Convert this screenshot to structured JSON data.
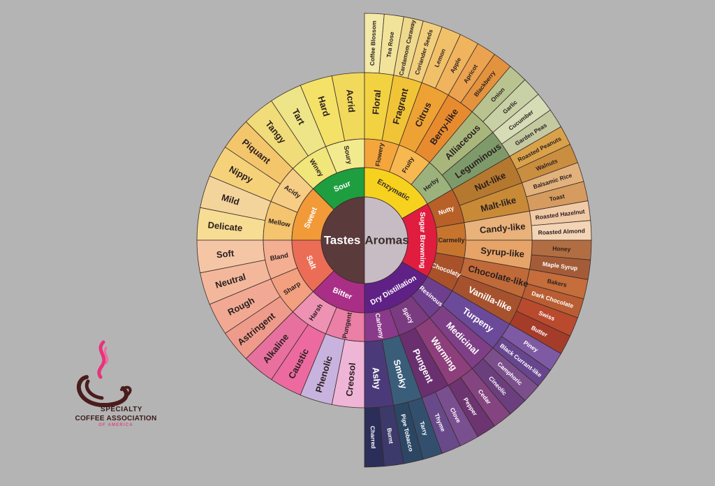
{
  "wheel": {
    "center_left": "Tastes",
    "center_right": "Aromas",
    "tastes": [
      {
        "name": "Sour",
        "color": "#1e9e3e",
        "subs": [
          {
            "name": "Soury",
            "items": [
              "Hard",
              "Acrid"
            ]
          },
          {
            "name": "Winey",
            "items": [
              "Tangy",
              "Tart"
            ]
          }
        ]
      },
      {
        "name": "Sweet",
        "color": "#f29a38",
        "subs": [
          {
            "name": "Acidy",
            "items": [
              "Nippy",
              "Piquant"
            ]
          },
          {
            "name": "Mellow",
            "items": [
              "Delicate",
              "Mild"
            ]
          }
        ]
      },
      {
        "name": "Salt",
        "color": "#ec6d55",
        "subs": [
          {
            "name": "Bland",
            "items": [
              "Neutral",
              "Soft"
            ]
          },
          {
            "name": "Sharp",
            "items": [
              "Astringent",
              "Rough"
            ]
          }
        ]
      },
      {
        "name": "Bitter",
        "color": "#a92e86",
        "subs": [
          {
            "name": "Harsh",
            "items": [
              "Caustic",
              "Alkaline"
            ]
          },
          {
            "name": "Pungent",
            "items": [
              "Creosol",
              "Phenolic"
            ]
          }
        ]
      }
    ],
    "aromas": [
      {
        "name": "Enzymatic",
        "color": "#f6d21e",
        "subs": [
          {
            "name": "Flowery",
            "items": [
              {
                "label": "Floral",
                "outer": [
                  "Coffee Blossom",
                  "Tea Rose"
                ]
              },
              {
                "label": "Fragrant",
                "outer": [
                  "Cardamom Caraway",
                  "Coriander Seeds"
                ]
              }
            ]
          },
          {
            "name": "Fruity",
            "items": [
              {
                "label": "Citrus",
                "outer": [
                  "Lemon",
                  "Apple"
                ]
              },
              {
                "label": "Berry-like",
                "outer": [
                  "Apricot",
                  "Blackberry"
                ]
              }
            ]
          },
          {
            "name": "Herby",
            "items": [
              {
                "label": "Alliaceous",
                "outer": [
                  "Onion",
                  "Garlic"
                ]
              },
              {
                "label": "Leguminous",
                "outer": [
                  "Cucumber",
                  "Garden Peas"
                ]
              }
            ]
          }
        ]
      },
      {
        "name": "Sugar Browning",
        "color": "#e01d3f",
        "subs": [
          {
            "name": "Nutty",
            "items": [
              {
                "label": "Nut-like",
                "outer": [
                  "Roasted Peanuts",
                  "Walnuts"
                ]
              },
              {
                "label": "Malt-like",
                "outer": [
                  "Balsamic Rice",
                  "Toast"
                ]
              }
            ]
          },
          {
            "name": "Carmelly",
            "items": [
              {
                "label": "Candy-like",
                "outer": [
                  "Roasted Hazelnut",
                  "Roasted Almond"
                ]
              },
              {
                "label": "Syrup-like",
                "outer": [
                  "Honey",
                  "Maple Syrup"
                ]
              }
            ]
          },
          {
            "name": "Chocolaty",
            "items": [
              {
                "label": "Chocolate-like",
                "outer": [
                  "Bakers",
                  "Dark Chocolate"
                ]
              },
              {
                "label": "Vanilla-like",
                "outer": [
                  "Swiss",
                  "Butter"
                ]
              }
            ]
          }
        ]
      },
      {
        "name": "Dry Distillation",
        "color": "#5f2185",
        "subs": [
          {
            "name": "Resinous",
            "items": [
              {
                "label": "Turpeny",
                "outer": [
                  "Piney",
                  "Black Currant-like"
                ]
              },
              {
                "label": "Medicinal",
                "outer": [
                  "Camphoric",
                  "Cineolic"
                ]
              }
            ]
          },
          {
            "name": "Spicy",
            "items": [
              {
                "label": "Warming",
                "outer": [
                  "Cedar",
                  "Pepper"
                ]
              },
              {
                "label": "Pungent",
                "outer": [
                  "Clove",
                  "Thyme"
                ]
              }
            ]
          },
          {
            "name": "Carbony",
            "items": [
              {
                "label": "Smoky",
                "outer": [
                  "Tarry",
                  "Pipe Tobacco"
                ]
              },
              {
                "label": "Ashy",
                "outer": [
                  "Burnt",
                  "Charred"
                ]
              }
            ]
          }
        ]
      }
    ]
  },
  "colors": {
    "background": "#b4b4b4",
    "center_tastes": "#5b3a3c",
    "center_aromas": "#c7bcc4",
    "sub_sour": "#f0e67a",
    "sub_sweet": "#f4c46e",
    "sub_salt": "#f2a07f",
    "sub_bitter": "#eb7fa6",
    "sub_enzymatic": "#f4a63d",
    "sub_herby": "#9bb27d",
    "sub_sugar": "#b76028",
    "sub_dry": "#7a3b80"
  },
  "logo": {
    "line1": "SPECIALTY",
    "line2": "COFFEE ASSOCIATION",
    "line3": "OF AMERICA"
  }
}
